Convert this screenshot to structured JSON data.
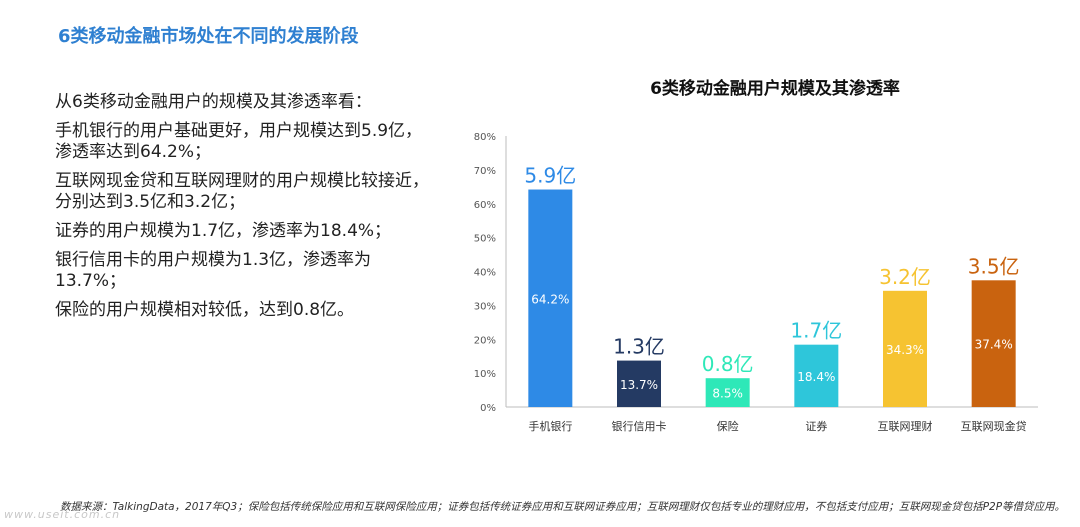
{
  "page_title": "6类移动金融市场处在不同的发展阶段",
  "paragraphs": [
    "从6类移动金融用户的规模及其渗透率看：",
    "手机银行的用户基础更好，用户规模达到5.9亿，渗透率达到64.2%；",
    "互联网现金贷和互联网理财的用户规模比较接近，分别达到3.5亿和3.2亿；",
    "证券的用户规模为1.7亿，渗透率为18.4%；",
    "银行信用卡的用户规模为1.3亿，渗透率为13.7%；",
    "保险的用户规模相对较低，达到0.8亿。"
  ],
  "footnote": "数据来源：TalkingData，2017年Q3；保险包括传统保险应用和互联网保险应用；证券包括传统证券应用和互联网证券应用；互联网理财仅包括专业的理财应用，不包括支付应用；互联网现金贷包括P2P等借贷应用。",
  "watermark": "www.useit.com.cn",
  "chart_data": {
    "type": "bar",
    "title": "6类移动金融用户规模及其渗透率",
    "categories": [
      "手机银行",
      "银行信用卡",
      "保险",
      "证券",
      "互联网理财",
      "互联网现金贷"
    ],
    "values": [
      64.2,
      13.7,
      8.5,
      18.4,
      34.3,
      37.4
    ],
    "value_labels": [
      "64.2%",
      "13.7%",
      "8.5%",
      "18.4%",
      "34.3%",
      "37.4%"
    ],
    "user_scale_labels": [
      "5.9亿",
      "1.3亿",
      "0.8亿",
      "1.7亿",
      "3.2亿",
      "3.5亿"
    ],
    "bar_colors": [
      "#2e8ae6",
      "#243a63",
      "#2ee8b8",
      "#2ec6da",
      "#f6c331",
      "#c9630f"
    ],
    "ylim": [
      0,
      80
    ],
    "yticks": [
      0,
      10,
      20,
      30,
      40,
      50,
      60,
      70,
      80
    ],
    "ytick_labels": [
      "0%",
      "10%",
      "20%",
      "30%",
      "40%",
      "50%",
      "60%",
      "70%",
      "80%"
    ],
    "grid": false,
    "legend": "none"
  }
}
